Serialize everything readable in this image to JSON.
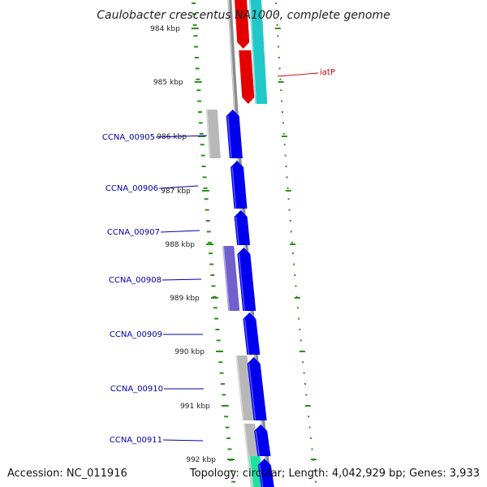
{
  "title": "Caulobacter crescentus NA1000, complete genome",
  "footer": {
    "accession": "Accession: NC_011916",
    "summary": "Topology: circular; Length: 4,042,929 bp; Genes: 3,933"
  },
  "colors": {
    "backbone": "#8c8c8c",
    "tick": "#2f8f1f",
    "cds_forward": "#0000ee",
    "cds_reverse": "#e40000",
    "cyan_feature": "#22c8c8",
    "gray_feature": "#b8b8b8",
    "purple_feature": "#7060cc",
    "teal_feature": "#20e0a0",
    "label_blue": "#0000aa",
    "label_red": "#cc0000"
  },
  "scale": {
    "unit": "kbp",
    "labels": [
      "984 kbp",
      "985 kbp",
      "986 kbp",
      "987 kbp",
      "988 kbp",
      "989 kbp",
      "990 kbp",
      "991 kbp",
      "992 kbp"
    ]
  },
  "gene_labels": [
    {
      "text": "iatP",
      "color": "red"
    },
    {
      "text": "CCNA_00905",
      "color": "blue"
    },
    {
      "text": "CCNA_00906",
      "color": "blue"
    },
    {
      "text": "CCNA_00907",
      "color": "blue"
    },
    {
      "text": "CCNA_00908",
      "color": "blue"
    },
    {
      "text": "CCNA_00909",
      "color": "blue"
    },
    {
      "text": "CCNA_00910",
      "color": "blue"
    },
    {
      "text": "CCNA_00911",
      "color": "blue"
    }
  ]
}
